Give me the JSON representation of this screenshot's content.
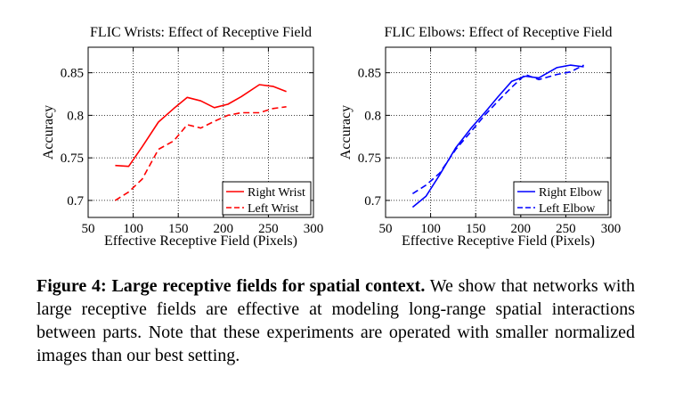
{
  "chart_data": [
    {
      "type": "line",
      "title": "FLIC Wrists: Effect of Receptive Field",
      "xlabel": "Effective Receptive Field (Pixels)",
      "ylabel": "Accuracy",
      "xlim": [
        50,
        300
      ],
      "ylim": [
        0.68,
        0.88
      ],
      "xticks": [
        50,
        100,
        150,
        200,
        250,
        300
      ],
      "yticks": [
        0.7,
        0.75,
        0.8,
        0.85
      ],
      "xtick_labels": [
        "50",
        "100",
        "150",
        "200",
        "250",
        "300"
      ],
      "ytick_labels": [
        "0.7",
        "0.75",
        "0.8",
        "0.85"
      ],
      "grid": true,
      "legend": "bottom-right",
      "series": [
        {
          "name": "Right Wrist",
          "color": "#ff0000",
          "dash": "solid",
          "x": [
            80,
            95,
            110,
            128,
            145,
            160,
            175,
            190,
            205,
            220,
            240,
            255,
            270
          ],
          "y": [
            0.741,
            0.74,
            0.763,
            0.792,
            0.808,
            0.821,
            0.817,
            0.809,
            0.813,
            0.822,
            0.836,
            0.834,
            0.828
          ]
        },
        {
          "name": "Left Wrist",
          "color": "#ff0000",
          "dash": "dashed",
          "x": [
            80,
            95,
            110,
            128,
            145,
            160,
            175,
            190,
            205,
            220,
            240,
            255,
            270
          ],
          "y": [
            0.7,
            0.71,
            0.725,
            0.76,
            0.77,
            0.789,
            0.785,
            0.793,
            0.8,
            0.803,
            0.803,
            0.808,
            0.81
          ]
        }
      ]
    },
    {
      "type": "line",
      "title": "FLIC Elbows: Effect of Receptive Field",
      "xlabel": "Effective Receptive Field (Pixels)",
      "ylabel": "Accuracy",
      "xlim": [
        50,
        300
      ],
      "ylim": [
        0.68,
        0.88
      ],
      "xticks": [
        50,
        100,
        150,
        200,
        250,
        300
      ],
      "yticks": [
        0.7,
        0.75,
        0.8,
        0.85
      ],
      "xtick_labels": [
        "50",
        "100",
        "150",
        "200",
        "250",
        "300"
      ],
      "ytick_labels": [
        "0.7",
        "0.75",
        "0.8",
        "0.85"
      ],
      "grid": true,
      "legend": "bottom-right",
      "series": [
        {
          "name": "Right Elbow",
          "color": "#0000ff",
          "dash": "solid",
          "x": [
            80,
            95,
            110,
            128,
            145,
            160,
            175,
            190,
            205,
            220,
            240,
            255,
            270
          ],
          "y": [
            0.692,
            0.705,
            0.73,
            0.762,
            0.785,
            0.803,
            0.822,
            0.84,
            0.846,
            0.844,
            0.856,
            0.859,
            0.857
          ]
        },
        {
          "name": "Left Elbow",
          "color": "#0000ff",
          "dash": "dashed",
          "x": [
            80,
            95,
            110,
            128,
            145,
            160,
            175,
            190,
            205,
            220,
            240,
            255,
            270
          ],
          "y": [
            0.708,
            0.718,
            0.732,
            0.76,
            0.781,
            0.8,
            0.817,
            0.833,
            0.848,
            0.842,
            0.848,
            0.851,
            0.859
          ]
        }
      ]
    }
  ],
  "caption": {
    "lead": "Figure 4: Large receptive fields for spatial context.",
    "body": " We show that networks with large receptive fields are effective at modeling long-range spatial interactions between parts. Note that these experiments are operated with smaller normalized images than our best setting."
  }
}
